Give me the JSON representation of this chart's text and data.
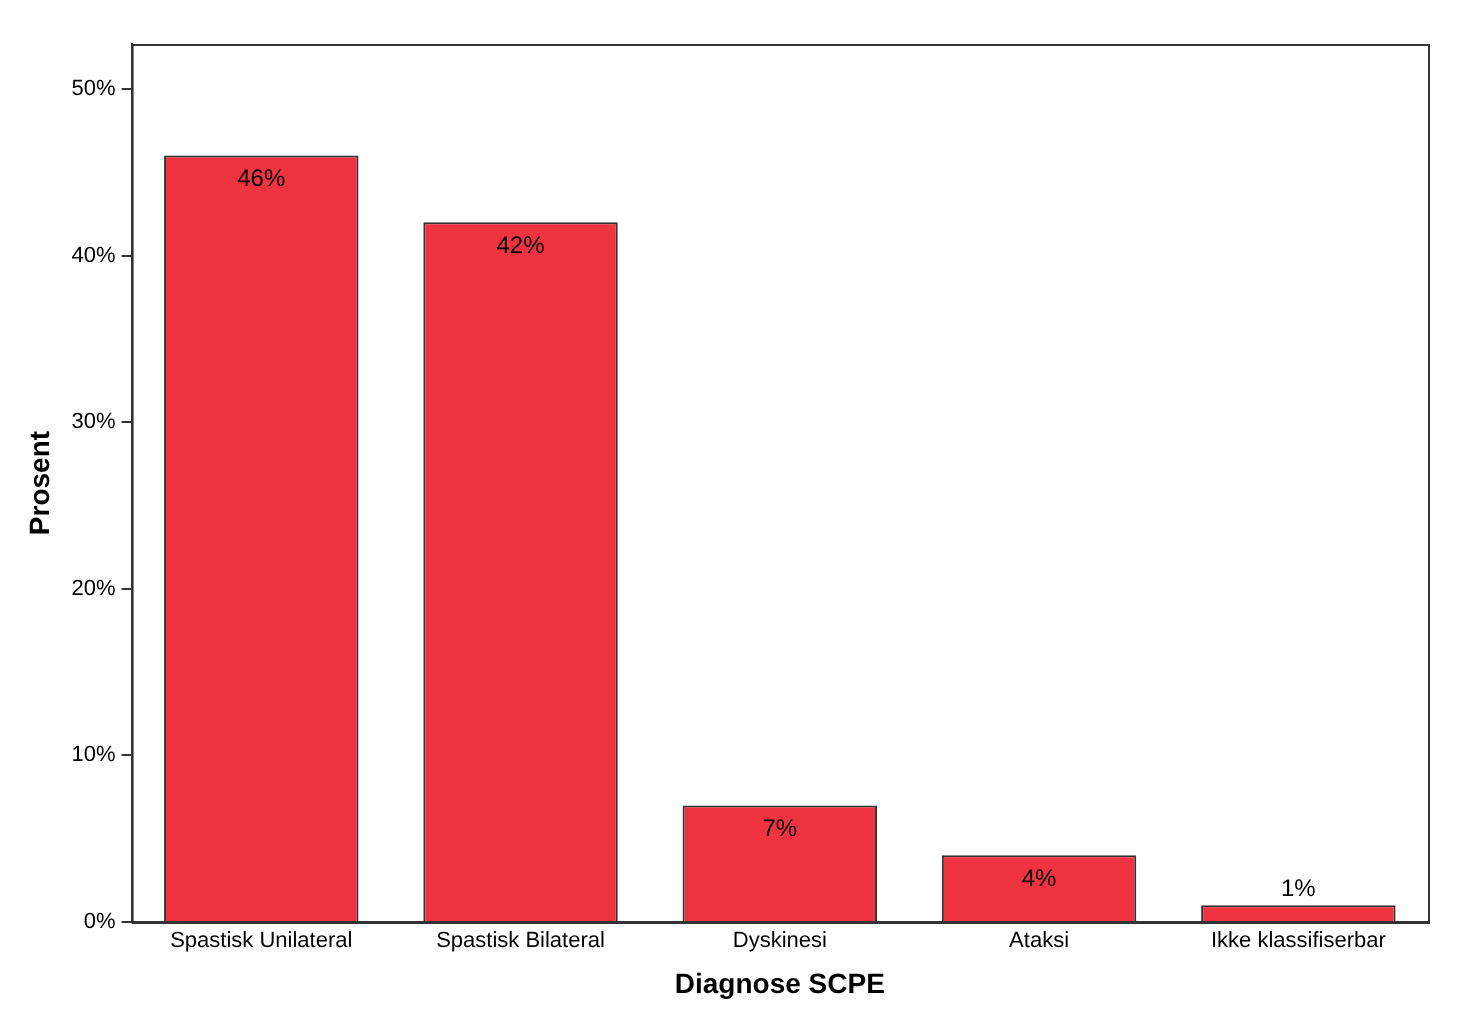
{
  "chart_data": {
    "type": "bar",
    "xlabel": "Diagnose SCPE",
    "ylabel": "Prosent",
    "categories": [
      "Spastisk Unilateral",
      "Spastisk Bilateral",
      "Dyskinesi",
      "Ataksi",
      "Ikke klassifiserbar"
    ],
    "values": [
      46,
      42,
      7,
      4,
      1
    ],
    "value_labels": [
      "46%",
      "42%",
      "7%",
      "4%",
      "1%"
    ],
    "color": "#ef3340",
    "ylim": [
      0,
      52.7
    ],
    "yticks": [
      {
        "value": 0,
        "label": "0%"
      },
      {
        "value": 10,
        "label": "10%"
      },
      {
        "value": 20,
        "label": "20%"
      },
      {
        "value": 30,
        "label": "30%"
      },
      {
        "value": 40,
        "label": "40%"
      },
      {
        "value": 50,
        "label": "50%"
      }
    ],
    "grid": false,
    "legend": false
  }
}
